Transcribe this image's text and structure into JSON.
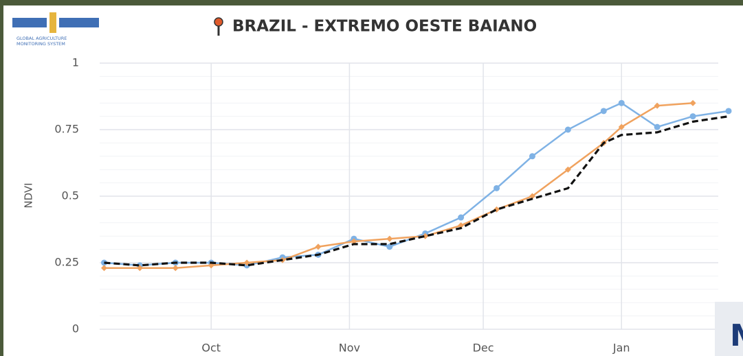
{
  "logo": {
    "line1": "GLOBAL AGRICULTURE",
    "line2": "MONITORING SYSTEM"
  },
  "overlay_text": "M",
  "chart_data": {
    "type": "line",
    "title": "BRAZIL - EXTREMO OESTE BAIANO",
    "ylabel": "NDVI",
    "x": [
      -24,
      -16,
      -8,
      0,
      8,
      16,
      24,
      32,
      40,
      48,
      56,
      64,
      72,
      80,
      88,
      92,
      100,
      108,
      116
    ],
    "series": [
      {
        "color": "#7fb2e5",
        "marker": "circle",
        "dashed": false,
        "values": [
          0.25,
          0.24,
          0.25,
          0.25,
          0.24,
          0.27,
          0.28,
          0.34,
          0.31,
          0.36,
          0.42,
          0.53,
          0.65,
          0.75,
          0.82,
          0.85,
          0.76,
          0.8,
          0.82
        ]
      },
      {
        "color": "#f0a25e",
        "marker": "diamond",
        "dashed": false,
        "values": [
          0.23,
          0.23,
          0.23,
          0.24,
          0.25,
          0.26,
          0.31,
          0.33,
          0.34,
          0.35,
          0.39,
          0.45,
          0.5,
          0.6,
          0.7,
          0.76,
          0.84,
          0.85,
          null
        ]
      },
      {
        "color": "#111111",
        "marker": "none",
        "dashed": true,
        "values": [
          0.25,
          0.24,
          0.25,
          0.25,
          0.24,
          0.26,
          0.28,
          0.32,
          0.32,
          0.35,
          0.38,
          0.45,
          0.49,
          0.53,
          0.7,
          0.73,
          0.74,
          0.78,
          0.8
        ]
      }
    ],
    "xlim": [
      -25,
      116
    ],
    "xticks": [
      {
        "value": 0,
        "label": "Oct"
      },
      {
        "value": 31,
        "label": "Nov"
      },
      {
        "value": 61,
        "label": "Dec"
      },
      {
        "value": 92,
        "label": "Jan"
      }
    ],
    "ylim": [
      0,
      1
    ],
    "yticks": [
      0,
      0.25,
      0.5,
      0.75,
      1
    ],
    "grid": true
  }
}
